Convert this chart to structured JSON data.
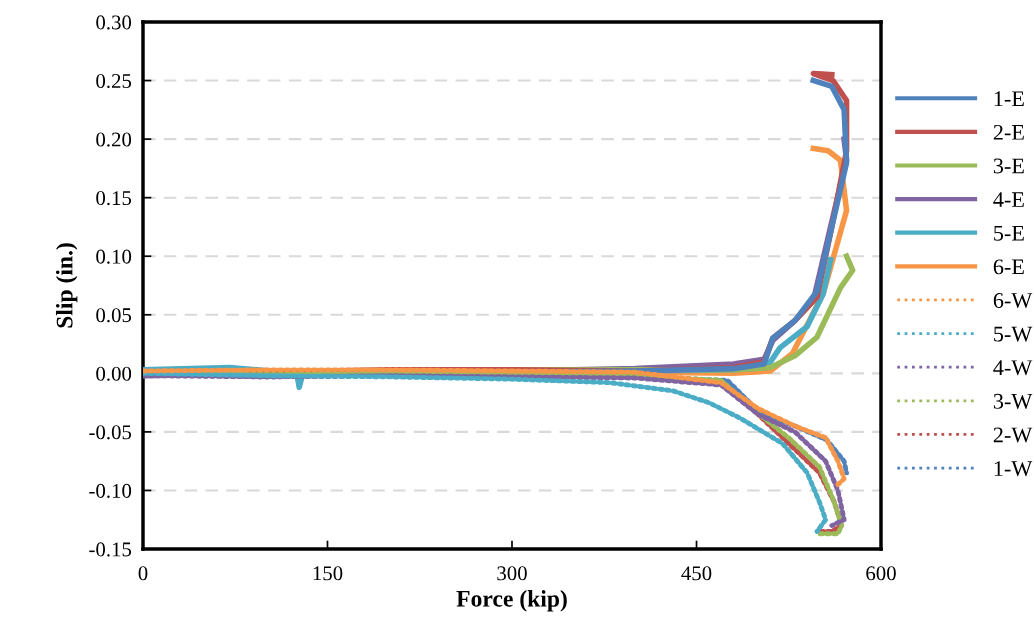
{
  "chart_data": {
    "type": "line",
    "xlabel": "Force (kip)",
    "ylabel": "Slip (in.)",
    "xlim": [
      0,
      600
    ],
    "xticks": [
      0,
      150,
      300,
      450,
      600
    ],
    "ylim": [
      -0.15,
      0.3
    ],
    "yticks": [
      {
        "value": -0.15,
        "label": "-0.15"
      },
      {
        "value": -0.1,
        "label": "-0.10"
      },
      {
        "value": -0.05,
        "label": "-0.05"
      },
      {
        "value": 0,
        "label": "0.00"
      },
      {
        "value": 0.05,
        "label": "0.05"
      },
      {
        "value": 0.1,
        "label": "0.10"
      },
      {
        "value": 0.15,
        "label": "0.15"
      },
      {
        "value": 0.2,
        "label": "0.20"
      },
      {
        "value": 0.25,
        "label": "0.25"
      },
      {
        "value": 0.3,
        "label": "0.30"
      }
    ],
    "grid": "y",
    "legend": "right",
    "marker": "none",
    "series": [
      {
        "name": "1-E",
        "color": "#4f81bd",
        "line_style": "solid",
        "x": [
          0,
          100,
          200,
          300,
          400,
          480,
          505,
          512,
          530,
          548,
          560,
          572,
          570,
          560,
          545
        ],
        "values": [
          0.0,
          -0.002,
          0.0,
          0.001,
          0.002,
          0.004,
          0.008,
          0.03,
          0.045,
          0.07,
          0.125,
          0.18,
          0.225,
          0.245,
          0.25
        ]
      },
      {
        "name": "2-E",
        "color": "#c0504d",
        "line_style": "solid",
        "x": [
          0,
          100,
          200,
          300,
          400,
          480,
          505,
          512,
          530,
          548,
          560,
          572,
          572,
          561,
          545,
          560
        ],
        "values": [
          0.0,
          0.001,
          0.003,
          0.003,
          0.002,
          0.005,
          0.01,
          0.03,
          0.045,
          0.065,
          0.125,
          0.19,
          0.233,
          0.25,
          0.256,
          0.255
        ]
      },
      {
        "name": "3-E",
        "color": "#9bbb59",
        "line_style": "solid",
        "x": [
          0,
          100,
          200,
          300,
          400,
          480,
          510,
          530,
          548,
          567,
          577,
          572
        ],
        "values": [
          0.001,
          0.0,
          0.002,
          0.003,
          0.003,
          0.003,
          0.005,
          0.015,
          0.031,
          0.073,
          0.088,
          0.1
        ]
      },
      {
        "name": "4-E",
        "color": "#8064a2",
        "line_style": "solid",
        "x": [
          0,
          100,
          200,
          300,
          400,
          480,
          505,
          512,
          530,
          545,
          559,
          572,
          570
        ],
        "values": [
          -0.002,
          0.0,
          0.0,
          0.002,
          0.004,
          0.008,
          0.012,
          0.028,
          0.045,
          0.062,
          0.125,
          0.182,
          0.2
        ]
      },
      {
        "name": "5-E",
        "color": "#4bacc6",
        "line_style": "solid",
        "x": [
          0,
          70,
          125,
          127,
          130,
          200,
          300,
          400,
          480,
          507,
          518,
          540,
          553,
          559
        ],
        "values": [
          0.003,
          0.005,
          0.0,
          -0.012,
          0.0,
          0.001,
          0.002,
          0.002,
          0.003,
          0.005,
          0.022,
          0.04,
          0.068,
          0.097
        ]
      },
      {
        "name": "6-E",
        "color": "#f79646",
        "line_style": "solid",
        "x": [
          0,
          100,
          200,
          300,
          400,
          480,
          510,
          528,
          553,
          572,
          567,
          557,
          545
        ],
        "values": [
          0.001,
          0.001,
          0.002,
          0.002,
          0.001,
          0.0,
          0.002,
          0.017,
          0.068,
          0.139,
          0.182,
          0.19,
          0.192
        ]
      },
      {
        "name": "6-W",
        "color": "#f79646",
        "line_style": "dotted",
        "x": [
          0,
          100,
          200,
          300,
          400,
          470,
          500,
          530,
          555,
          565,
          570,
          565
        ],
        "values": [
          0.002,
          0.003,
          0.003,
          0.002,
          0.001,
          -0.008,
          -0.03,
          -0.045,
          -0.055,
          -0.075,
          -0.09,
          -0.095
        ]
      },
      {
        "name": "5-W",
        "color": "#4bacc6",
        "line_style": "dotted",
        "x": [
          0,
          100,
          200,
          300,
          380,
          431,
          460,
          485,
          520,
          540,
          550,
          555,
          548
        ],
        "values": [
          0.0,
          -0.002,
          -0.003,
          -0.005,
          -0.008,
          -0.015,
          -0.025,
          -0.038,
          -0.06,
          -0.085,
          -0.11,
          -0.125,
          -0.135
        ]
      },
      {
        "name": "4-W",
        "color": "#8064a2",
        "line_style": "dotted",
        "x": [
          0,
          100,
          200,
          300,
          400,
          470,
          500,
          530,
          555,
          565,
          570,
          560
        ],
        "values": [
          -0.002,
          -0.003,
          -0.002,
          -0.003,
          -0.004,
          -0.01,
          -0.035,
          -0.05,
          -0.075,
          -0.1,
          -0.125,
          -0.13
        ]
      },
      {
        "name": "3-W",
        "color": "#9bbb59",
        "line_style": "dotted",
        "x": [
          0,
          100,
          200,
          300,
          400,
          470,
          495,
          525,
          550,
          562,
          568,
          565,
          550
        ],
        "values": [
          0.0,
          -0.001,
          0.0,
          -0.001,
          -0.002,
          -0.006,
          -0.03,
          -0.055,
          -0.08,
          -0.11,
          -0.13,
          -0.137,
          -0.137
        ]
      },
      {
        "name": "2-W",
        "color": "#c0504d",
        "line_style": "dotted",
        "x": [
          0,
          100,
          200,
          300,
          400,
          470,
          495,
          525,
          550,
          562,
          568,
          560,
          550
        ],
        "values": [
          -0.001,
          -0.001,
          -0.001,
          -0.001,
          -0.003,
          -0.007,
          -0.03,
          -0.06,
          -0.085,
          -0.11,
          -0.13,
          -0.135,
          -0.135
        ]
      },
      {
        "name": "1-W",
        "color": "#4f81bd",
        "line_style": "dotted",
        "x": [
          0,
          100,
          200,
          300,
          400,
          475,
          502,
          530,
          556,
          570,
          572
        ],
        "values": [
          -0.001,
          -0.003,
          -0.002,
          -0.002,
          -0.003,
          -0.006,
          -0.034,
          -0.045,
          -0.057,
          -0.075,
          -0.085
        ]
      }
    ]
  }
}
